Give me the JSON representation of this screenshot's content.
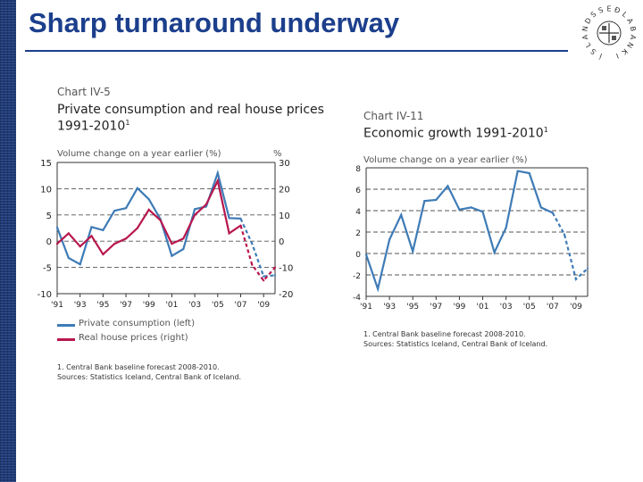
{
  "slide": {
    "title": "Sharp turnaround underway"
  },
  "logo": {
    "text": "SEÐLABANKI ÍSLANDS",
    "letters": [
      "S",
      "E",
      "Ð",
      "L",
      "A",
      "B",
      "A",
      "N",
      "K",
      "I",
      " ",
      "Í",
      "S",
      "L",
      "A",
      "N",
      "D",
      "S"
    ]
  },
  "colors": {
    "consumption": "#3e7bb6",
    "house": "#b8174e",
    "title": "#1c3f8c",
    "sidebar": "#1d3a78",
    "grid": "#555555"
  },
  "chart_data": [
    {
      "type": "line",
      "label": "Chart IV-5",
      "title_line1": "Private consumption and real house prices",
      "title_line2": "1991-2010",
      "title_sup": "1",
      "ylabel_left": "Volume change on a year earlier (%)",
      "ylabel_right": "%",
      "ylim_left": [
        -10,
        15
      ],
      "ylim_right": [
        -20,
        30
      ],
      "yticks_left": [
        "15",
        "10",
        "5",
        "0",
        "-5",
        "-10"
      ],
      "yticks_right": [
        "30",
        "20",
        "10",
        "0",
        "-10",
        "-20"
      ],
      "x": [
        1991,
        1992,
        1993,
        1994,
        1995,
        1996,
        1997,
        1998,
        1999,
        2000,
        2001,
        2002,
        2003,
        2004,
        2005,
        2006,
        2007,
        2008,
        2009,
        2010
      ],
      "x_tick_labels": [
        "'91",
        "'93",
        "'95",
        "'97",
        "'99",
        "'01",
        "'03",
        "'05",
        "'07",
        "'09"
      ],
      "series": [
        {
          "name": "Private consumption (left)",
          "axis": "left",
          "values": [
            2.6,
            -3.2,
            -4.4,
            2.7,
            2.1,
            5.8,
            6.3,
            10.1,
            8.0,
            4.2,
            -2.8,
            -1.5,
            6.1,
            6.6,
            13.0,
            4.4,
            4.3,
            -0.5,
            -6.7,
            -6.5
          ],
          "forecast_from_index": 16
        },
        {
          "name": "Real house prices (right)",
          "axis": "right",
          "values": [
            -1,
            3,
            -2,
            2,
            -5,
            -1,
            1,
            5,
            12,
            8,
            -1,
            1,
            10,
            14,
            23,
            3,
            6,
            -9,
            -15,
            -10
          ],
          "forecast_from_index": 16
        }
      ],
      "legend": [
        "Private consumption (left)",
        "Real house prices (right)"
      ],
      "footnote": "1. Central Bank baseline forecast 2008-2010.",
      "sources": "Sources: Statistics Iceland, Central Bank of Iceland."
    },
    {
      "type": "line",
      "label": "Chart IV-11",
      "title_line1": "Economic growth 1991-2010",
      "title_sup": "1",
      "ylabel": "Volume change on a year earlier (%)",
      "ylim": [
        -4,
        8
      ],
      "yticks": [
        "8",
        "6",
        "4",
        "2",
        "0",
        "-2",
        "-4"
      ],
      "x": [
        1991,
        1992,
        1993,
        1994,
        1995,
        1996,
        1997,
        1998,
        1999,
        2000,
        2001,
        2002,
        2003,
        2004,
        2005,
        2006,
        2007,
        2008,
        2009,
        2010
      ],
      "x_tick_labels": [
        "'91",
        "'93",
        "'95",
        "'97",
        "'99",
        "'01",
        "'03",
        "'05",
        "'07",
        "'09"
      ],
      "series": [
        {
          "name": "Economic growth",
          "values": [
            -0.1,
            -3.3,
            1.3,
            3.6,
            0.2,
            4.9,
            5.0,
            6.3,
            4.1,
            4.3,
            3.9,
            0.1,
            2.4,
            7.7,
            7.5,
            4.3,
            3.8,
            1.8,
            -2.4,
            -1.4
          ],
          "forecast_from_index": 16
        }
      ],
      "footnote": "1. Central Bank baseline forecast 2008-2010.",
      "sources": "Sources: Statistics Iceland, Central Bank of Iceland."
    }
  ]
}
